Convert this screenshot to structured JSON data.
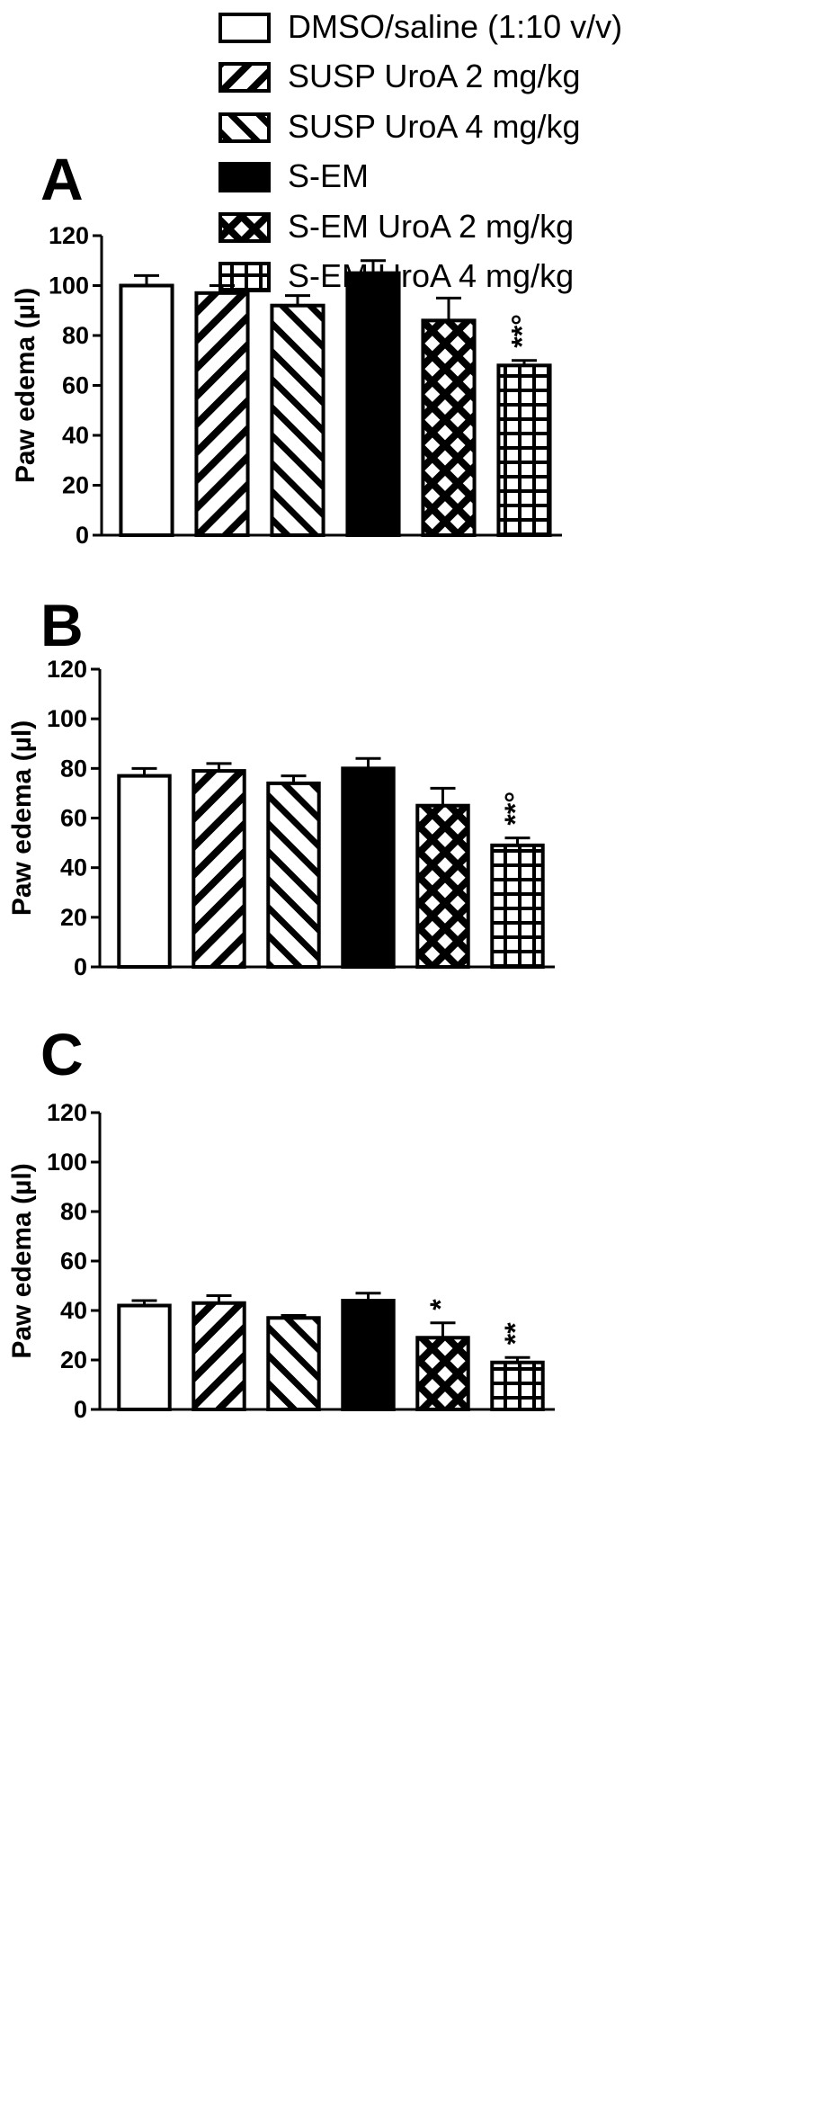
{
  "legend": [
    {
      "label": "DMSO/saline (1:10 v/v)",
      "pattern": "white"
    },
    {
      "label": "SUSP UroA 2 mg/kg",
      "pattern": "fwd"
    },
    {
      "label": "SUSP UroA 4 mg/kg",
      "pattern": "back"
    },
    {
      "label": "S-EM",
      "pattern": "black"
    },
    {
      "label": "S-EM UroA 2 mg/kg",
      "pattern": "cross"
    },
    {
      "label": "S-EM UroA 4 mg/kg",
      "pattern": "grid"
    }
  ],
  "colors": {
    "ink": "#000000",
    "paper": "#ffffff"
  },
  "chart_data": [
    {
      "type": "bar",
      "panel": "A",
      "ylabel": "Paw edema (µl)",
      "ylim": [
        0,
        120
      ],
      "yticks": [
        "0",
        "20",
        "40",
        "60",
        "80",
        "100",
        "120"
      ],
      "categories": [
        "DMSO/saline (1:10 v/v)",
        "SUSP UroA 2 mg/kg",
        "SUSP UroA 4 mg/kg",
        "S-EM",
        "S-EM UroA 2 mg/kg",
        "S-EM UroA 4 mg/kg"
      ],
      "values": [
        100,
        97,
        92,
        105,
        86,
        68
      ],
      "errors": [
        4,
        3,
        4,
        5,
        9,
        2
      ],
      "annotations": [
        "",
        "",
        "",
        "",
        "",
        "**°"
      ]
    },
    {
      "type": "bar",
      "panel": "B",
      "ylabel": "Paw edema (µl)",
      "ylim": [
        0,
        120
      ],
      "yticks": [
        "0",
        "20",
        "40",
        "60",
        "80",
        "100",
        "120"
      ],
      "categories": [
        "DMSO/saline (1:10 v/v)",
        "SUSP UroA 2 mg/kg",
        "SUSP UroA 4 mg/kg",
        "S-EM",
        "S-EM UroA 2 mg/kg",
        "S-EM UroA 4 mg/kg"
      ],
      "values": [
        77,
        79,
        74,
        80,
        65,
        49
      ],
      "errors": [
        3,
        3,
        3,
        4,
        7,
        3
      ],
      "annotations": [
        "",
        "",
        "",
        "",
        "",
        "**°"
      ]
    },
    {
      "type": "bar",
      "panel": "C",
      "ylabel": "Paw edema (µl)",
      "ylim": [
        0,
        120
      ],
      "yticks": [
        "0",
        "20",
        "40",
        "60",
        "80",
        "100",
        "120"
      ],
      "categories": [
        "DMSO/saline (1:10 v/v)",
        "SUSP UroA 2 mg/kg",
        "SUSP UroA 4 mg/kg",
        "S-EM",
        "S-EM UroA 2 mg/kg",
        "S-EM UroA 4 mg/kg"
      ],
      "values": [
        42,
        43,
        37,
        44,
        29,
        19
      ],
      "errors": [
        2,
        3,
        1,
        3,
        6,
        2
      ],
      "annotations": [
        "",
        "",
        "",
        "",
        "*",
        "**"
      ]
    }
  ]
}
